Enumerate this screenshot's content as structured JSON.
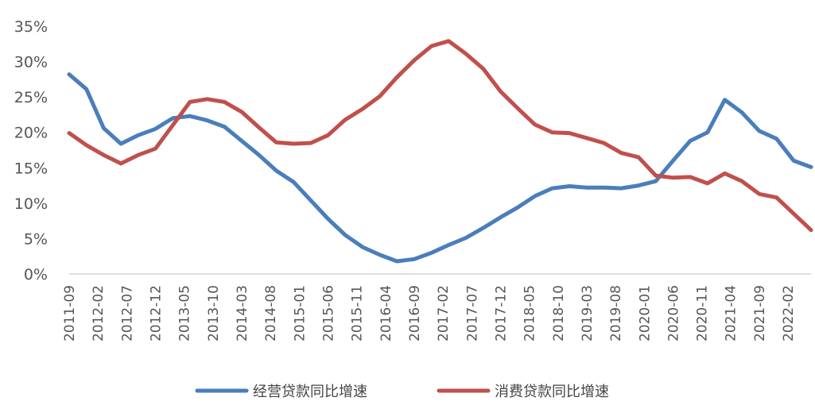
{
  "chart_data": {
    "type": "line",
    "title": "",
    "xlabel": "",
    "ylabel": "",
    "ylim": [
      0,
      35
    ],
    "y_ticks": [
      "0%",
      "5%",
      "10%",
      "15%",
      "20%",
      "25%",
      "30%",
      "35%"
    ],
    "y_tick_values": [
      0,
      5,
      10,
      15,
      20,
      25,
      30,
      35
    ],
    "x_tick_labels": [
      "2011-09",
      "2012-02",
      "2012-07",
      "2012-12",
      "2013-05",
      "2013-10",
      "2014-03",
      "2014-08",
      "2015-01",
      "2015-06",
      "2015-11",
      "2016-04",
      "2016-09",
      "2017-02",
      "2017-07",
      "2017-12",
      "2018-05",
      "2018-10",
      "2019-03",
      "2019-08",
      "2020-01",
      "2020-06",
      "2020-11",
      "2021-04",
      "2021-09",
      "2022-02"
    ],
    "x": [
      "2011-09",
      "2011-12",
      "2012-03",
      "2012-06",
      "2012-09",
      "2012-12",
      "2013-03",
      "2013-06",
      "2013-09",
      "2013-12",
      "2014-03",
      "2014-06",
      "2014-09",
      "2014-12",
      "2015-03",
      "2015-06",
      "2015-09",
      "2015-12",
      "2016-03",
      "2016-06",
      "2016-09",
      "2016-12",
      "2017-03",
      "2017-06",
      "2017-09",
      "2017-12",
      "2018-03",
      "2018-06",
      "2018-09",
      "2018-12",
      "2019-03",
      "2019-06",
      "2019-09",
      "2019-12",
      "2020-03",
      "2020-06",
      "2020-09",
      "2020-12",
      "2021-03",
      "2021-06",
      "2021-09",
      "2021-12",
      "2022-03",
      "2022-06"
    ],
    "grid": false,
    "legend_position": "bottom",
    "series": [
      {
        "name": "经营贷款同比增速",
        "color": "#4a7ebb",
        "values": [
          28.2,
          26.1,
          20.6,
          18.4,
          19.6,
          20.5,
          22.0,
          22.3,
          21.7,
          20.8,
          18.8,
          16.8,
          14.6,
          13.0,
          10.4,
          7.8,
          5.5,
          3.8,
          2.7,
          1.8,
          2.1,
          3.0,
          4.1,
          5.1,
          6.5,
          8.0,
          9.4,
          11.0,
          12.1,
          12.4,
          12.2,
          12.2,
          12.1,
          12.5,
          13.1,
          16.0,
          18.8,
          20.0,
          24.6,
          22.8,
          20.2,
          19.1,
          16.0,
          15.1
        ]
      },
      {
        "name": "消费贷款同比增速",
        "color": "#c0504d",
        "values": [
          19.9,
          18.2,
          16.8,
          15.6,
          16.8,
          17.7,
          21.0,
          24.3,
          24.7,
          24.3,
          22.9,
          20.7,
          18.6,
          18.4,
          18.5,
          19.6,
          21.8,
          23.3,
          25.1,
          27.8,
          30.2,
          32.2,
          32.9,
          31.1,
          29.0,
          25.8,
          23.4,
          21.1,
          20.0,
          19.9,
          19.2,
          18.5,
          17.1,
          16.5,
          13.9,
          13.6,
          13.7,
          12.8,
          14.2,
          13.1,
          11.3,
          10.8,
          8.5,
          6.2
        ]
      }
    ]
  }
}
